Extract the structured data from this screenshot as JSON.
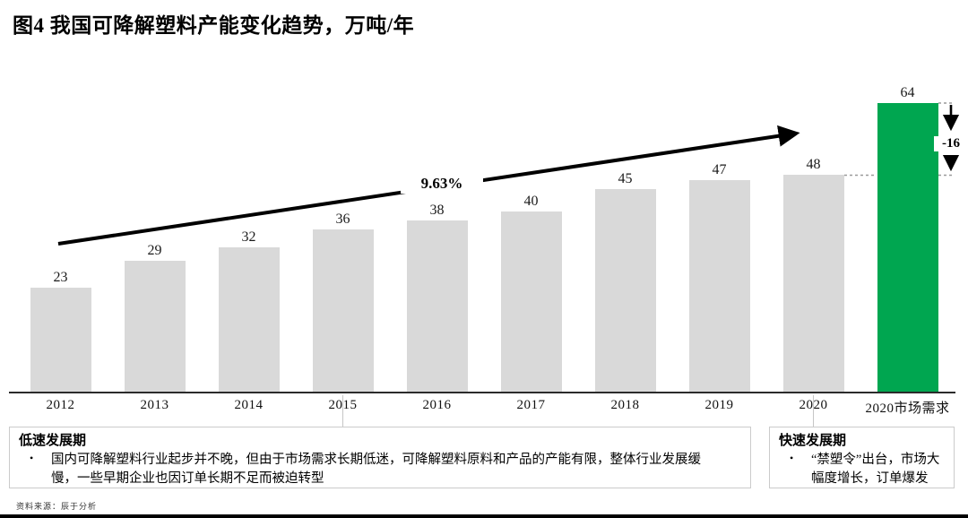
{
  "title": "图4 我国可降解塑料产能变化趋势，万吨/年",
  "chart_data": {
    "type": "bar",
    "categories": [
      "2012",
      "2013",
      "2014",
      "2015",
      "2016",
      "2017",
      "2018",
      "2019",
      "2020",
      "2020市场需求"
    ],
    "values": [
      23,
      29,
      32,
      36,
      38,
      40,
      45,
      47,
      48,
      64
    ],
    "title": "图4 我国可降解塑料产能变化趋势，万吨/年",
    "xlabel": "",
    "ylabel": "万吨/年",
    "ylim": [
      0,
      64
    ],
    "grid": false,
    "legend": false,
    "bar_color": "#d9d9d9",
    "highlight_color": "#00a650",
    "highlight_index": 9,
    "annotations": {
      "cagr_label": "9.63%",
      "gap_label": "-16",
      "gap_between": [
        "2020产能 48",
        "2020市场需求 64"
      ]
    }
  },
  "annotations": {
    "cagr": "9.63%",
    "gap": "-16"
  },
  "callouts": {
    "left": {
      "heading": "低速发展期",
      "bullet": "国内可降解塑料行业起步并不晚，但由于市场需求长期低迷，可降解塑料原料和产品的产能有限，整体行业发展缓慢，一些早期企业也因订单长期不足而被迫转型"
    },
    "right": {
      "heading": "快速发展期",
      "bullet": "“禁塑令”出台，市场大幅度增长，订单爆发"
    }
  },
  "source": "资料来源：辰于分析",
  "colors": {
    "bar_gray": "#d9d9d9",
    "bar_green": "#00a650",
    "axis": "#2b2b2b",
    "box_border": "#cbcbcb"
  }
}
